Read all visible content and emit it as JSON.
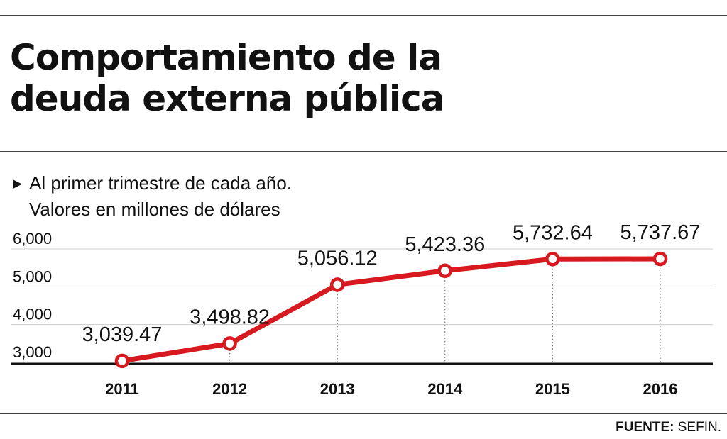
{
  "header": {
    "title_line1": "Comportamiento de la",
    "title_line2": "deuda externa pública",
    "subtitle_marker": "▶",
    "subtitle_line1": "Al primer trimestre de cada año.",
    "subtitle_line2": "Valores en millones de dólares"
  },
  "footer": {
    "source_label": "FUENTE:",
    "source_value": " SEFIN."
  },
  "colors": {
    "line": "#d71920",
    "marker_fill": "#ffffff",
    "grid": "#cccccc",
    "axis": "#111111",
    "text": "#111111"
  },
  "chart_data": {
    "type": "line",
    "title": "Comportamiento de la deuda externa pública",
    "subtitle": "Al primer trimestre de cada año. Valores en millones de dólares",
    "xlabel": "",
    "ylabel": "",
    "x": [
      "2011",
      "2012",
      "2013",
      "2014",
      "2015",
      "2016"
    ],
    "series": [
      {
        "values": [
          3039.47,
          3498.82,
          5056.12,
          5423.36,
          5732.64,
          5737.67
        ],
        "labels": [
          "3,039.47",
          "3,498.82",
          "5,056.12",
          "5,423.36",
          "5,732.64",
          "5,737.67"
        ]
      }
    ],
    "yticks": [
      3000,
      4000,
      5000,
      6000
    ],
    "ytick_labels": [
      "3,000",
      "4,000",
      "5,000",
      "6,000"
    ],
    "ylim": [
      3000,
      6000
    ],
    "grid": true,
    "legend": "none"
  }
}
